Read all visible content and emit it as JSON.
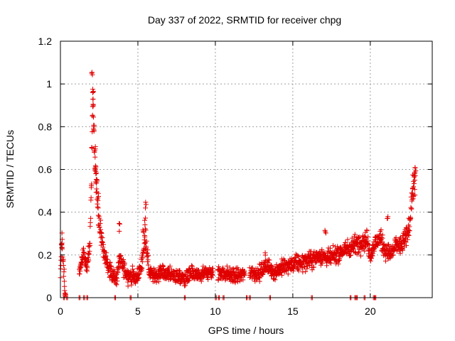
{
  "chart_data": {
    "type": "scatter",
    "title": "Day 337 of 2022, SRMTID for receiver chpg",
    "xlabel": "GPS time / hours",
    "ylabel": "SRMTID / TECUs",
    "xlim": [
      0,
      24
    ],
    "ylim": [
      0,
      1.2
    ],
    "x_ticks": [
      "0",
      "5",
      "10",
      "15",
      "20"
    ],
    "y_ticks": [
      "0",
      "0.2",
      "0.4",
      "0.6",
      "0.8",
      "1",
      "1.2"
    ],
    "grid": true,
    "marker": "plus",
    "color": "#e00000",
    "series": [
      {
        "name": "SRMTID",
        "trend": [
          [
            0.0,
            0.12
          ],
          [
            0.1,
            0.27
          ],
          [
            0.3,
            0.0
          ],
          [
            0.5,
            0.0
          ],
          [
            1.2,
            0.12
          ],
          [
            1.5,
            0.22
          ],
          [
            1.7,
            0.14
          ],
          [
            1.9,
            0.25
          ],
          [
            2.0,
            0.55
          ],
          [
            2.1,
            0.95
          ],
          [
            2.2,
            0.65
          ],
          [
            2.3,
            0.55
          ],
          [
            2.5,
            0.35
          ],
          [
            2.8,
            0.22
          ],
          [
            3.0,
            0.15
          ],
          [
            3.3,
            0.12
          ],
          [
            3.6,
            0.08
          ],
          [
            3.8,
            0.18
          ],
          [
            4.0,
            0.15
          ],
          [
            4.3,
            0.11
          ],
          [
            4.6,
            0.1
          ],
          [
            4.9,
            0.09
          ],
          [
            5.2,
            0.14
          ],
          [
            5.5,
            0.3
          ],
          [
            5.7,
            0.13
          ],
          [
            6.0,
            0.1
          ],
          [
            6.5,
            0.12
          ],
          [
            7.0,
            0.11
          ],
          [
            7.5,
            0.1
          ],
          [
            8.0,
            0.09
          ],
          [
            8.5,
            0.11
          ],
          [
            9.0,
            0.1
          ],
          [
            9.5,
            0.12
          ],
          [
            9.8,
            0.11
          ],
          [
            10.0,
            0.09
          ],
          [
            10.3,
            0.12
          ],
          [
            10.8,
            0.11
          ],
          [
            11.3,
            0.1
          ],
          [
            11.8,
            0.11
          ],
          [
            12.3,
            0.12
          ],
          [
            12.8,
            0.11
          ],
          [
            13.3,
            0.15
          ],
          [
            13.8,
            0.12
          ],
          [
            14.3,
            0.14
          ],
          [
            14.8,
            0.15
          ],
          [
            15.3,
            0.16
          ],
          [
            15.8,
            0.17
          ],
          [
            16.3,
            0.18
          ],
          [
            16.8,
            0.2
          ],
          [
            17.3,
            0.18
          ],
          [
            17.8,
            0.2
          ],
          [
            18.3,
            0.22
          ],
          [
            18.8,
            0.24
          ],
          [
            19.3,
            0.26
          ],
          [
            19.8,
            0.27
          ],
          [
            20.0,
            0.2
          ],
          [
            20.3,
            0.25
          ],
          [
            20.6,
            0.28
          ],
          [
            21.0,
            0.22
          ],
          [
            21.3,
            0.2
          ],
          [
            21.7,
            0.25
          ],
          [
            22.0,
            0.24
          ],
          [
            22.3,
            0.28
          ],
          [
            22.5,
            0.32
          ],
          [
            22.7,
            0.48
          ],
          [
            22.9,
            0.56
          ]
        ],
        "spread": 0.045,
        "spikes": [
          [
            2.05,
            1.06
          ],
          [
            2.1,
            0.99
          ],
          [
            2.08,
            0.93
          ],
          [
            2.15,
            0.81
          ],
          [
            2.22,
            0.72
          ],
          [
            2.25,
            0.62
          ],
          [
            2.35,
            0.57
          ],
          [
            2.45,
            0.5
          ],
          [
            0.1,
            0.27
          ],
          [
            3.8,
            0.35
          ],
          [
            5.5,
            0.45
          ],
          [
            5.45,
            0.38
          ],
          [
            5.35,
            0.33
          ],
          [
            22.9,
            0.63
          ],
          [
            22.85,
            0.6
          ],
          [
            22.75,
            0.52
          ],
          [
            21.1,
            0.39
          ],
          [
            17.1,
            0.33
          ],
          [
            13.2,
            0.21
          ]
        ],
        "zeros": [
          0.2,
          0.4,
          1.2,
          1.5,
          1.7,
          3.5,
          4.5,
          8.0,
          10.0,
          10.2,
          10.5,
          12.0,
          12.2,
          13.5,
          16.2,
          18.7,
          19.0,
          19.1,
          19.6,
          20.2,
          20.3
        ]
      }
    ]
  }
}
